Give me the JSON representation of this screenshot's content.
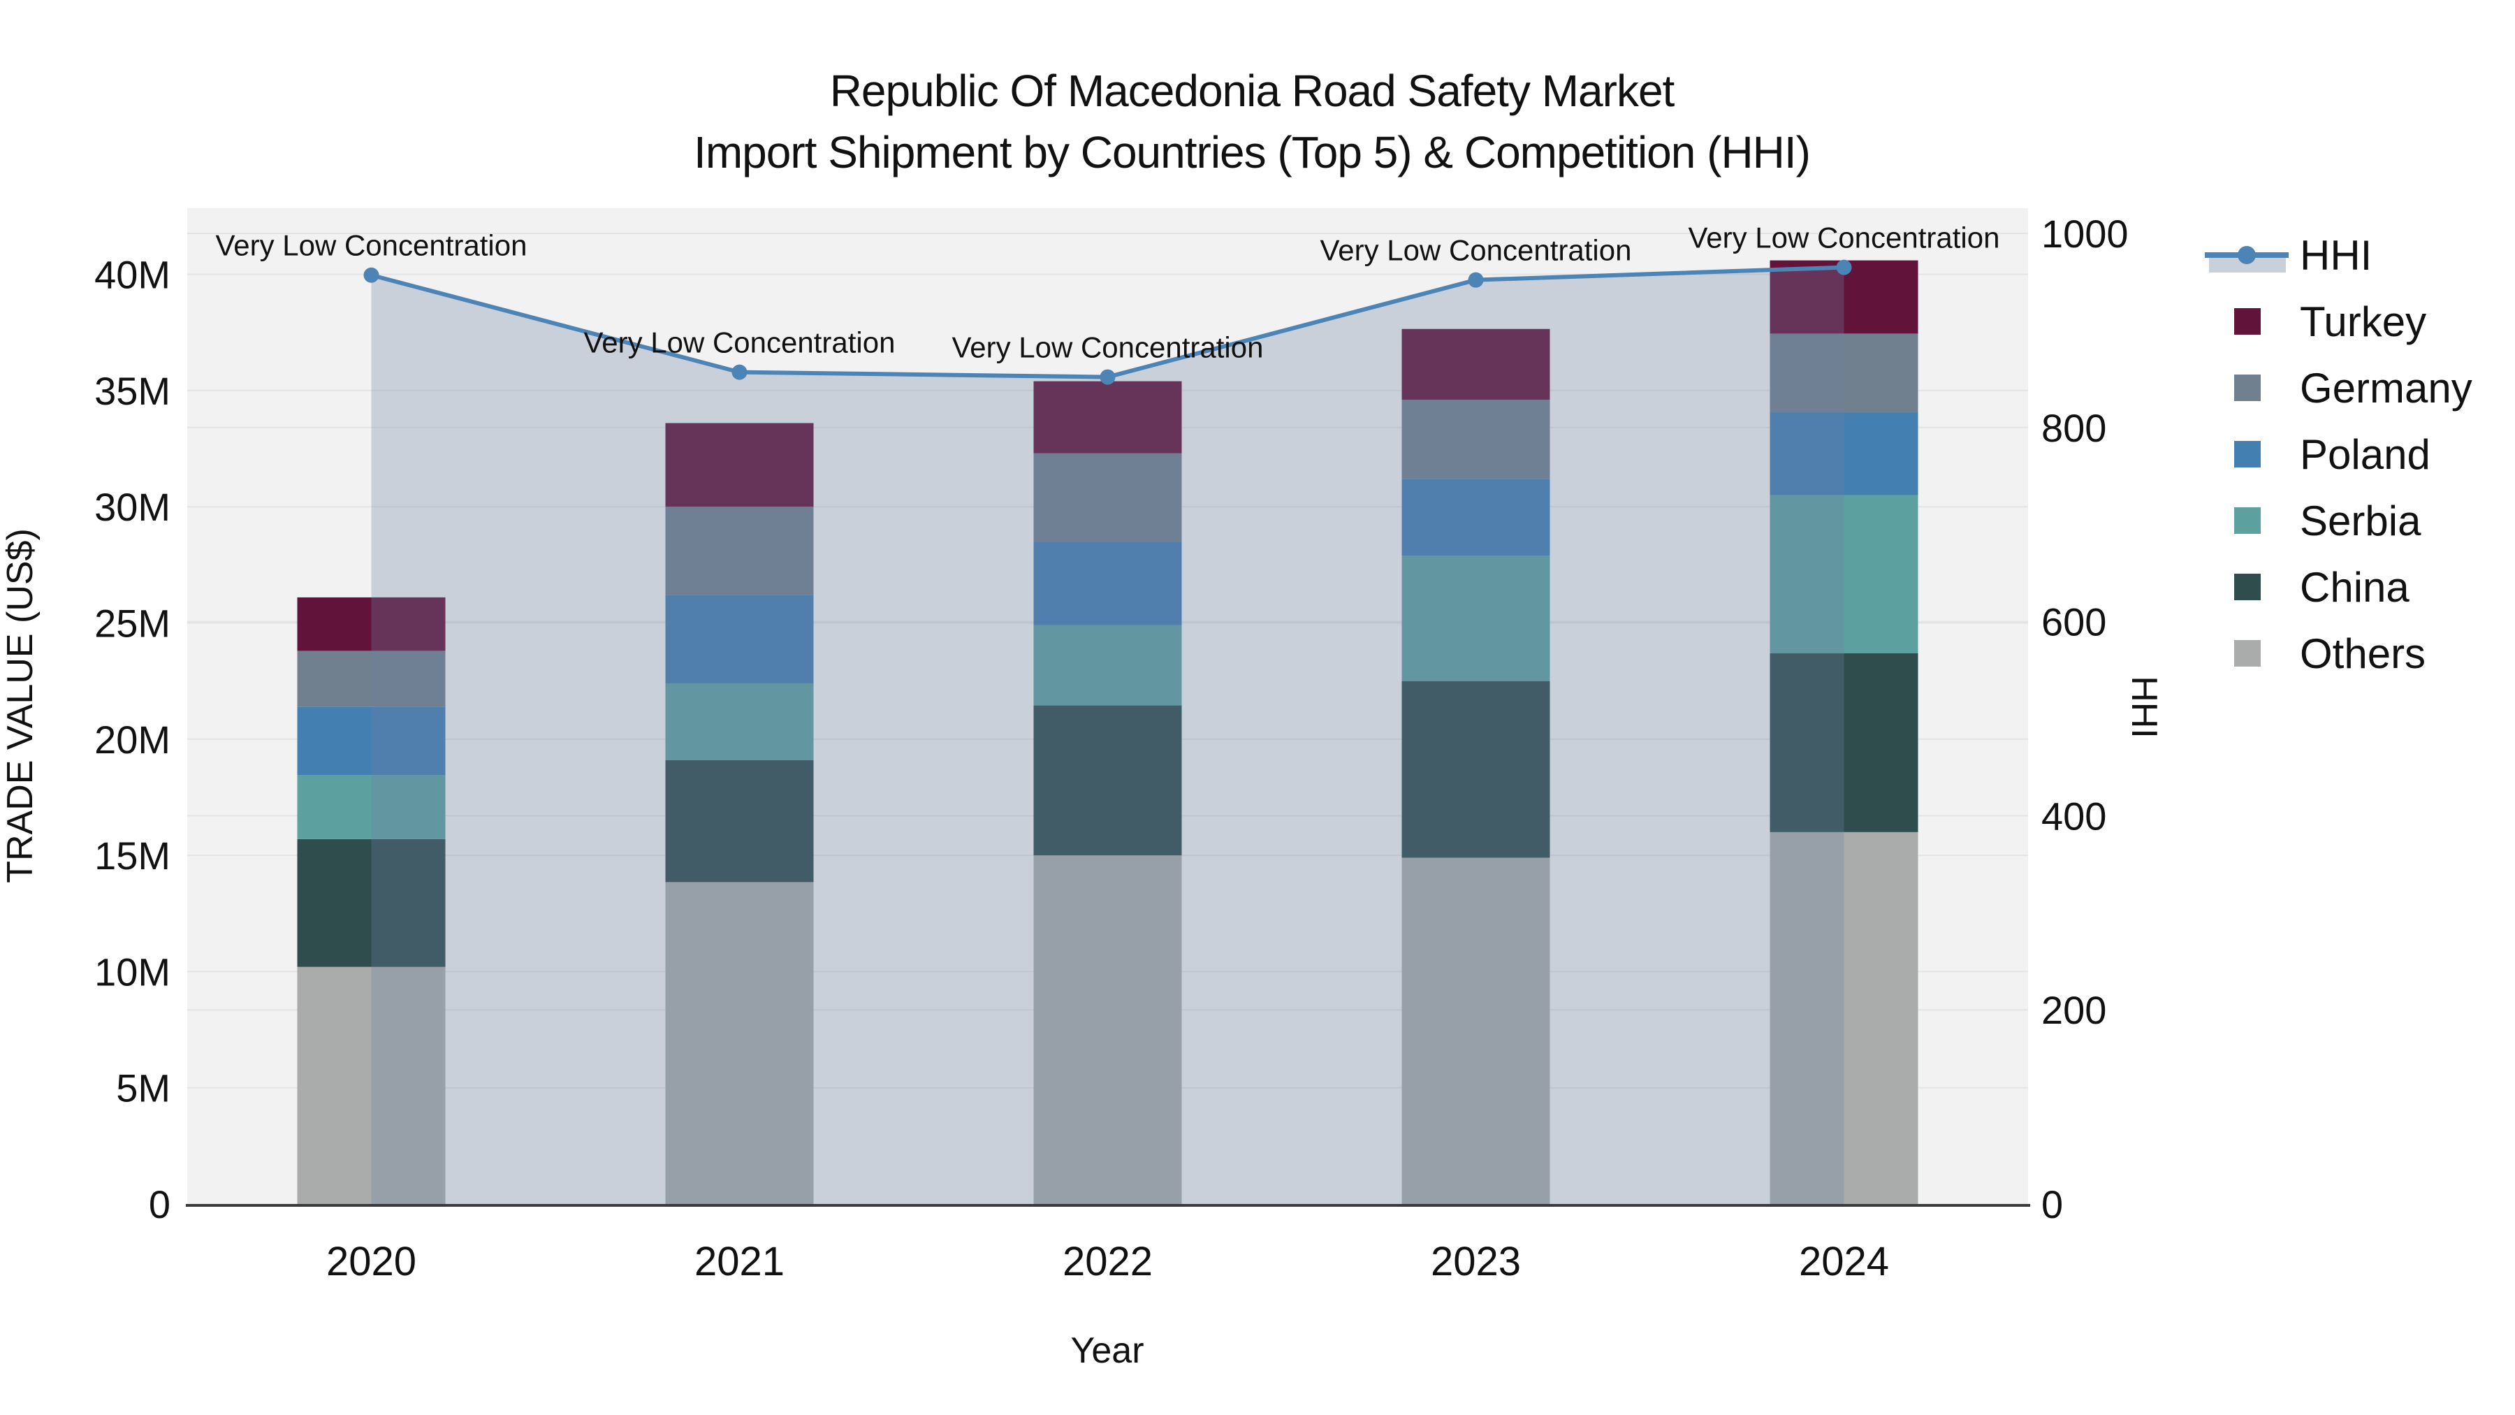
{
  "title": {
    "line1": "Republic Of Macedonia Road Safety Market",
    "line2": "Import Shipment by Countries (Top 5) & Competition (HHI)"
  },
  "colors": {
    "plot_bg": "#F2F2F2",
    "gridline": "#E4E4E4",
    "axis_line": "#3B3B3B",
    "hhi_line": "#4D84B6",
    "hhi_area_fill": "rgba(108,130,162,0.30)",
    "legend_area_swatch": "#CAD0DA"
  },
  "chart_data": {
    "type": "bar",
    "stacked": true,
    "title": "Republic Of Macedonia Road Safety Market — Import Shipment by Countries (Top 5) & Competition (HHI)",
    "categories": [
      "2020",
      "2021",
      "2022",
      "2023",
      "2024"
    ],
    "value_unit": "million US$",
    "series": [
      {
        "name": "Others",
        "color": "#A9ACAB",
        "values": [
          10.2,
          13.85,
          15.0,
          14.9,
          16.0
        ]
      },
      {
        "name": "China",
        "color": "#2F4D4D",
        "values": [
          5.5,
          5.25,
          6.45,
          7.6,
          7.7
        ]
      },
      {
        "name": "Serbia",
        "color": "#5DA0A0",
        "values": [
          2.75,
          3.3,
          3.45,
          5.4,
          6.8
        ]
      },
      {
        "name": "Poland",
        "color": "#447FB2",
        "values": [
          2.95,
          3.8,
          3.6,
          3.3,
          3.55
        ]
      },
      {
        "name": "Germany",
        "color": "#70808F",
        "values": [
          2.4,
          3.8,
          3.8,
          3.4,
          3.4
        ]
      },
      {
        "name": "Turkey",
        "color": "#621339",
        "values": [
          2.3,
          3.6,
          3.1,
          3.05,
          3.15
        ]
      }
    ],
    "totals": [
      26.1,
      33.6,
      35.4,
      37.65,
      40.6
    ],
    "line_series": {
      "name": "HHI",
      "axis": "right",
      "values": [
        957,
        857,
        852,
        952,
        965
      ],
      "marker": "circle"
    },
    "annotations": [
      {
        "x": "2020",
        "text": "Very Low Concentration"
      },
      {
        "x": "2021",
        "text": "Very Low Concentration"
      },
      {
        "x": "2022",
        "text": "Very Low Concentration"
      },
      {
        "x": "2023",
        "text": "Very Low Concentration"
      },
      {
        "x": "2024",
        "text": "Very Low Concentration"
      }
    ],
    "left_axis": {
      "title": "TRADE VALUE (US$)",
      "tick_labels": [
        "0",
        "5M",
        "10M",
        "15M",
        "20M",
        "25M",
        "30M",
        "35M",
        "40M"
      ],
      "tick_values": [
        0,
        5,
        10,
        15,
        20,
        25,
        30,
        35,
        40
      ],
      "range": [
        0,
        42.8
      ]
    },
    "right_axis": {
      "title": "HHI",
      "tick_labels": [
        "0",
        "200",
        "400",
        "600",
        "800",
        "1000"
      ],
      "tick_values": [
        0,
        200,
        400,
        600,
        800,
        1000
      ],
      "range": [
        0,
        1026
      ]
    },
    "x_axis": {
      "title": "Year"
    },
    "grid": true,
    "legend_position": "right"
  },
  "legend": {
    "items": [
      {
        "label": "HHI",
        "type": "line"
      },
      {
        "label": "Turkey",
        "type": "swatch",
        "color": "#621339"
      },
      {
        "label": "Germany",
        "type": "swatch",
        "color": "#70808F"
      },
      {
        "label": "Poland",
        "type": "swatch",
        "color": "#447FB2"
      },
      {
        "label": "Serbia",
        "type": "swatch",
        "color": "#5DA0A0"
      },
      {
        "label": "China",
        "type": "swatch",
        "color": "#2F4D4D"
      },
      {
        "label": "Others",
        "type": "swatch",
        "color": "#A9ACAB"
      }
    ]
  }
}
